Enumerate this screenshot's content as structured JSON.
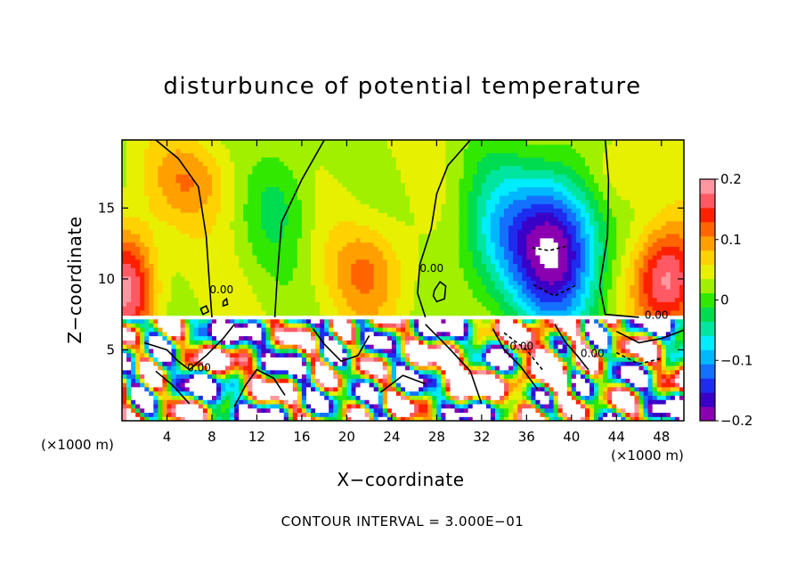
{
  "chart_data": {
    "type": "heatmap",
    "title": "disturbunce of potential temperature",
    "xlabel": "X−coordinate",
    "ylabel": "Z−coordinate",
    "x_unit_left": "(×1000 m)",
    "x_unit_right": "(×1000 m)",
    "x_ticks": [
      4,
      8,
      12,
      16,
      20,
      24,
      28,
      32,
      36,
      40,
      44,
      48
    ],
    "x_tick_labels": [
      "4",
      "8",
      "12",
      "16",
      "20",
      "24",
      "28",
      "32",
      "36",
      "40",
      "44",
      "48"
    ],
    "y_ticks": [
      5,
      10,
      15
    ],
    "y_tick_labels": [
      "5",
      "10",
      "15"
    ],
    "xlim": [
      0,
      50
    ],
    "ylim": [
      0,
      19.8
    ],
    "grid": false,
    "colorbar": {
      "range": [
        -0.2,
        0.2
      ],
      "ticks": [
        -0.2,
        -0.1,
        0,
        0.1,
        0.2
      ],
      "tick_labels": [
        "−0.2",
        "−0.1",
        "0",
        "0.1",
        "0.2"
      ],
      "colors": [
        "#8a00b0",
        "#3a00c8",
        "#1e2cf0",
        "#1470ff",
        "#00b8ff",
        "#00ecff",
        "#00e6a0",
        "#00dc50",
        "#30e800",
        "#a0f000",
        "#e6f000",
        "#ffd200",
        "#ffa000",
        "#ff6400",
        "#ff2000",
        "#ff5a64",
        "#ff96a0"
      ]
    },
    "contour_labels": [
      {
        "text": "0.00",
        "x": 26.5,
        "z": 10.5
      },
      {
        "text": "0.00",
        "x": 46.5,
        "z": 7.2
      },
      {
        "text": "0.00",
        "x": 34.5,
        "z": 5.0
      },
      {
        "text": "0.00",
        "x": 40.8,
        "z": 4.5
      },
      {
        "text": "0.00",
        "x": 5.8,
        "z": 3.5
      },
      {
        "text": "0.00",
        "x": 7.8,
        "z": 9.0
      }
    ],
    "contour_interval_text": "CONTOUR INTERVAL = 3.000E−01",
    "colormap": "rainbow (purple→blue→cyan→green→yellow→orange→red→pink)",
    "missing_region_color": "#ffffff"
  }
}
